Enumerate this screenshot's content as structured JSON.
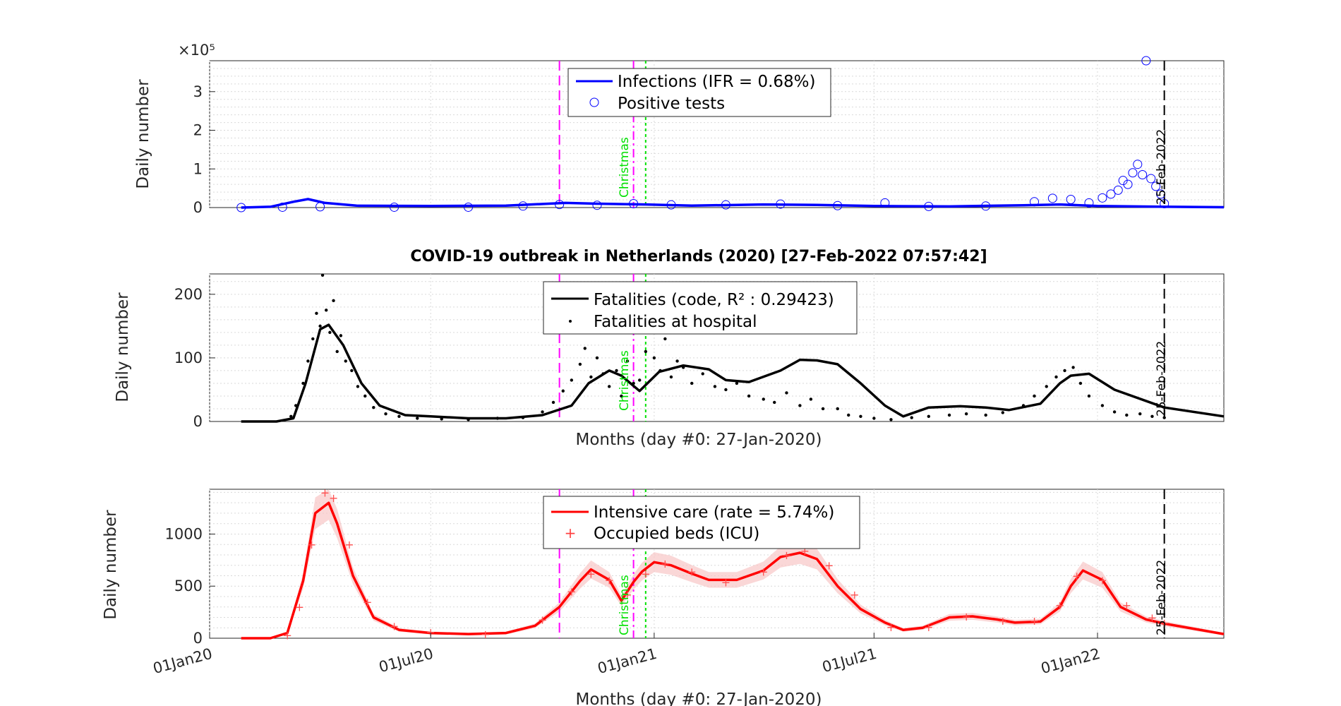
{
  "figure": {
    "title": "COVID-19 outbreak in Netherlands (2020) [27-Feb-2022 07:57:42]",
    "xlabel": "Months (day #0: 27-Jan-2020)",
    "x_tick_labels": [
      "01Jan20",
      "01Jul20",
      "01Jan21",
      "01Jul21",
      "01Jan22"
    ],
    "marker_labels": {
      "christmas": "Christmas",
      "today": "25-Feb-2022"
    },
    "colors": {
      "infections": "#0000ff",
      "fatalities": "#000000",
      "icu": "#ff0000",
      "icu_band": "#f8c6c6",
      "magenta": "#ff00ff",
      "green": "#00e000"
    }
  },
  "chart_data": [
    {
      "type": "line",
      "panel": "infections",
      "ylabel": "Daily number",
      "y_exponent_label": "×10⁵",
      "y_ticks": [
        "0",
        "1",
        "2",
        "3"
      ],
      "ylim": [
        0,
        3.8
      ],
      "xlim": [
        "2020-01-01",
        "2022-04-15"
      ],
      "grid": true,
      "legend_position": "top-center",
      "series": [
        {
          "name": "Infections (IFR = 0.68%)",
          "style": "line",
          "x": [
            "2020-01-27",
            "2020-02-20",
            "2020-03-10",
            "2020-03-22",
            "2020-04-05",
            "2020-05-01",
            "2020-07-01",
            "2020-09-01",
            "2020-10-20",
            "2020-11-15",
            "2020-12-25",
            "2021-02-01",
            "2021-04-01",
            "2021-05-15",
            "2021-07-01",
            "2021-09-01",
            "2021-11-01",
            "2021-12-01",
            "2022-01-01",
            "2022-02-01",
            "2022-03-01",
            "2022-04-15"
          ],
          "values": [
            0,
            0.02,
            0.15,
            0.22,
            0.12,
            0.05,
            0.04,
            0.05,
            0.12,
            0.1,
            0.08,
            0.05,
            0.08,
            0.07,
            0.04,
            0.03,
            0.06,
            0.08,
            0.04,
            0.03,
            0.02,
            0.01
          ]
        },
        {
          "name": "Positive tests",
          "style": "circles",
          "x": [
            "2020-01-27",
            "2020-03-01",
            "2020-04-01",
            "2020-06-01",
            "2020-08-01",
            "2020-09-15",
            "2020-10-15",
            "2020-11-15",
            "2020-12-15",
            "2021-01-15",
            "2021-03-01",
            "2021-04-15",
            "2021-06-01",
            "2021-07-10",
            "2021-08-15",
            "2021-10-01",
            "2021-11-10",
            "2021-11-25",
            "2021-12-10",
            "2021-12-25",
            "2022-01-05",
            "2022-01-12",
            "2022-01-18",
            "2022-01-22",
            "2022-01-26",
            "2022-01-30",
            "2022-02-03",
            "2022-02-07",
            "2022-02-10",
            "2022-02-14",
            "2022-02-18",
            "2022-02-22",
            "2022-02-25"
          ],
          "values": [
            0,
            0.01,
            0.02,
            0.01,
            0.01,
            0.04,
            0.08,
            0.06,
            0.1,
            0.07,
            0.07,
            0.09,
            0.05,
            0.12,
            0.03,
            0.04,
            0.15,
            0.24,
            0.21,
            0.12,
            0.25,
            0.35,
            0.45,
            0.7,
            0.6,
            0.9,
            1.12,
            0.85,
            3.8,
            0.75,
            0.55,
            0.35,
            0.1
          ]
        }
      ]
    },
    {
      "type": "line",
      "panel": "fatalities",
      "ylabel": "Daily number",
      "y_ticks": [
        "0",
        "100",
        "200"
      ],
      "ylim": [
        0,
        232
      ],
      "xlim": [
        "2020-01-01",
        "2022-04-15"
      ],
      "grid": true,
      "legend_position": "top-center",
      "series": [
        {
          "name": "Fatalities (code, R² : 0.29423)",
          "style": "line",
          "x": [
            "2020-01-27",
            "2020-02-25",
            "2020-03-10",
            "2020-03-20",
            "2020-04-01",
            "2020-04-08",
            "2020-04-20",
            "2020-05-05",
            "2020-05-20",
            "2020-06-10",
            "2020-07-01",
            "2020-08-01",
            "2020-09-01",
            "2020-10-01",
            "2020-10-25",
            "2020-11-08",
            "2020-11-25",
            "2020-12-05",
            "2020-12-20",
            "2021-01-05",
            "2021-01-25",
            "2021-02-15",
            "2021-03-01",
            "2021-03-20",
            "2021-04-15",
            "2021-05-01",
            "2021-05-15",
            "2021-06-01",
            "2021-06-20",
            "2021-07-10",
            "2021-07-25",
            "2021-08-15",
            "2021-09-10",
            "2021-10-01",
            "2021-10-20",
            "2021-11-15",
            "2021-12-01",
            "2021-12-10",
            "2021-12-25",
            "2022-01-15",
            "2022-02-25",
            "2022-04-15"
          ],
          "values": [
            0,
            0,
            5,
            60,
            145,
            152,
            120,
            60,
            25,
            10,
            8,
            5,
            5,
            10,
            25,
            60,
            80,
            72,
            48,
            78,
            88,
            82,
            65,
            62,
            80,
            97,
            96,
            90,
            60,
            25,
            8,
            22,
            24,
            22,
            18,
            28,
            60,
            72,
            75,
            50,
            22,
            8
          ]
        },
        {
          "name": "Fatalities at hospital",
          "style": "dots",
          "x": [
            "2020-03-08",
            "2020-03-12",
            "2020-03-18",
            "2020-03-22",
            "2020-03-26",
            "2020-03-29",
            "2020-04-01",
            "2020-04-03",
            "2020-04-06",
            "2020-04-09",
            "2020-04-12",
            "2020-04-15",
            "2020-04-18",
            "2020-04-22",
            "2020-04-27",
            "2020-05-02",
            "2020-05-08",
            "2020-05-15",
            "2020-05-25",
            "2020-06-05",
            "2020-06-20",
            "2020-07-10",
            "2020-08-01",
            "2020-08-25",
            "2020-09-15",
            "2020-10-01",
            "2020-10-10",
            "2020-10-18",
            "2020-10-25",
            "2020-11-01",
            "2020-11-05",
            "2020-11-10",
            "2020-11-15",
            "2020-11-20",
            "2020-11-25",
            "2020-12-01",
            "2020-12-05",
            "2020-12-10",
            "2020-12-15",
            "2020-12-20",
            "2020-12-25",
            "2021-01-01",
            "2021-01-06",
            "2021-01-10",
            "2021-01-15",
            "2021-01-20",
            "2021-01-25",
            "2021-02-01",
            "2021-02-10",
            "2021-02-20",
            "2021-03-01",
            "2021-03-10",
            "2021-03-20",
            "2021-04-01",
            "2021-04-10",
            "2021-04-20",
            "2021-05-01",
            "2021-05-10",
            "2021-05-20",
            "2021-06-01",
            "2021-06-10",
            "2021-06-20",
            "2021-07-01",
            "2021-07-15",
            "2021-08-01",
            "2021-08-15",
            "2021-09-01",
            "2021-09-15",
            "2021-10-01",
            "2021-10-15",
            "2021-11-01",
            "2021-11-10",
            "2021-11-20",
            "2021-11-28",
            "2021-12-05",
            "2021-12-12",
            "2021-12-18",
            "2021-12-25",
            "2022-01-05",
            "2022-01-15",
            "2022-01-25",
            "2022-02-05",
            "2022-02-15",
            "2022-02-25"
          ],
          "values": [
            8,
            25,
            60,
            95,
            130,
            170,
            150,
            230,
            175,
            140,
            190,
            110,
            135,
            95,
            80,
            55,
            40,
            22,
            12,
            8,
            5,
            4,
            3,
            5,
            6,
            15,
            30,
            48,
            65,
            90,
            115,
            70,
            100,
            75,
            55,
            80,
            40,
            95,
            60,
            65,
            110,
            100,
            80,
            130,
            70,
            95,
            85,
            60,
            75,
            55,
            50,
            60,
            40,
            35,
            30,
            45,
            25,
            35,
            20,
            20,
            10,
            8,
            5,
            3,
            6,
            8,
            10,
            12,
            10,
            14,
            25,
            40,
            55,
            70,
            80,
            85,
            60,
            40,
            25,
            15,
            10,
            12,
            8,
            6
          ]
        }
      ]
    },
    {
      "type": "line",
      "panel": "icu",
      "ylabel": "Daily number",
      "y_ticks": [
        "0",
        "500",
        "1000"
      ],
      "ylim": [
        0,
        1430
      ],
      "xlim": [
        "2020-01-01",
        "2022-04-15"
      ],
      "grid": true,
      "legend_position": "top-center",
      "series": [
        {
          "name": "Intensive care (rate = 5.74%)",
          "style": "line",
          "x": [
            "2020-01-27",
            "2020-02-20",
            "2020-03-05",
            "2020-03-18",
            "2020-03-28",
            "2020-04-08",
            "2020-04-15",
            "2020-04-28",
            "2020-05-15",
            "2020-06-05",
            "2020-07-01",
            "2020-08-01",
            "2020-09-01",
            "2020-09-25",
            "2020-10-15",
            "2020-11-01",
            "2020-11-10",
            "2020-11-25",
            "2020-12-05",
            "2020-12-15",
            "2020-12-22",
            "2021-01-01",
            "2021-01-15",
            "2021-02-01",
            "2021-02-15",
            "2021-03-10",
            "2021-04-01",
            "2021-04-15",
            "2021-05-01",
            "2021-05-15",
            "2021-06-01",
            "2021-06-20",
            "2021-07-10",
            "2021-07-25",
            "2021-08-10",
            "2021-09-01",
            "2021-09-20",
            "2021-10-10",
            "2021-10-25",
            "2021-11-15",
            "2021-12-01",
            "2021-12-10",
            "2021-12-20",
            "2022-01-05",
            "2022-01-20",
            "2022-02-10",
            "2022-02-25",
            "2022-04-15"
          ],
          "values": [
            0,
            0,
            50,
            550,
            1200,
            1300,
            1100,
            600,
            200,
            80,
            50,
            40,
            50,
            120,
            300,
            550,
            660,
            560,
            360,
            540,
            640,
            730,
            700,
            620,
            560,
            560,
            650,
            780,
            820,
            760,
            500,
            280,
            150,
            80,
            100,
            200,
            210,
            180,
            150,
            160,
            300,
            500,
            650,
            560,
            300,
            180,
            140,
            40
          ]
        },
        {
          "name": "Occupied beds (ICU)",
          "style": "plus",
          "x": [
            "2020-03-05",
            "2020-03-15",
            "2020-03-25",
            "2020-04-05",
            "2020-04-12",
            "2020-04-25",
            "2020-05-10",
            "2020-06-01",
            "2020-07-01",
            "2020-08-15",
            "2020-10-01",
            "2020-10-25",
            "2020-11-10",
            "2020-11-25",
            "2020-12-10",
            "2020-12-25",
            "2021-01-10",
            "2021-02-01",
            "2021-03-01",
            "2021-04-01",
            "2021-04-20",
            "2021-05-05",
            "2021-05-25",
            "2021-06-15",
            "2021-07-15",
            "2021-08-15",
            "2021-09-15",
            "2021-10-15",
            "2021-11-10",
            "2021-12-01",
            "2021-12-15",
            "2022-01-05",
            "2022-01-25",
            "2022-02-15",
            "2022-02-25"
          ],
          "values": [
            30,
            300,
            900,
            1400,
            1350,
            900,
            350,
            120,
            60,
            40,
            180,
            450,
            620,
            560,
            420,
            620,
            720,
            640,
            540,
            640,
            800,
            840,
            700,
            420,
            110,
            110,
            210,
            170,
            170,
            320,
            600,
            560,
            320,
            200,
            150
          ]
        }
      ]
    }
  ]
}
